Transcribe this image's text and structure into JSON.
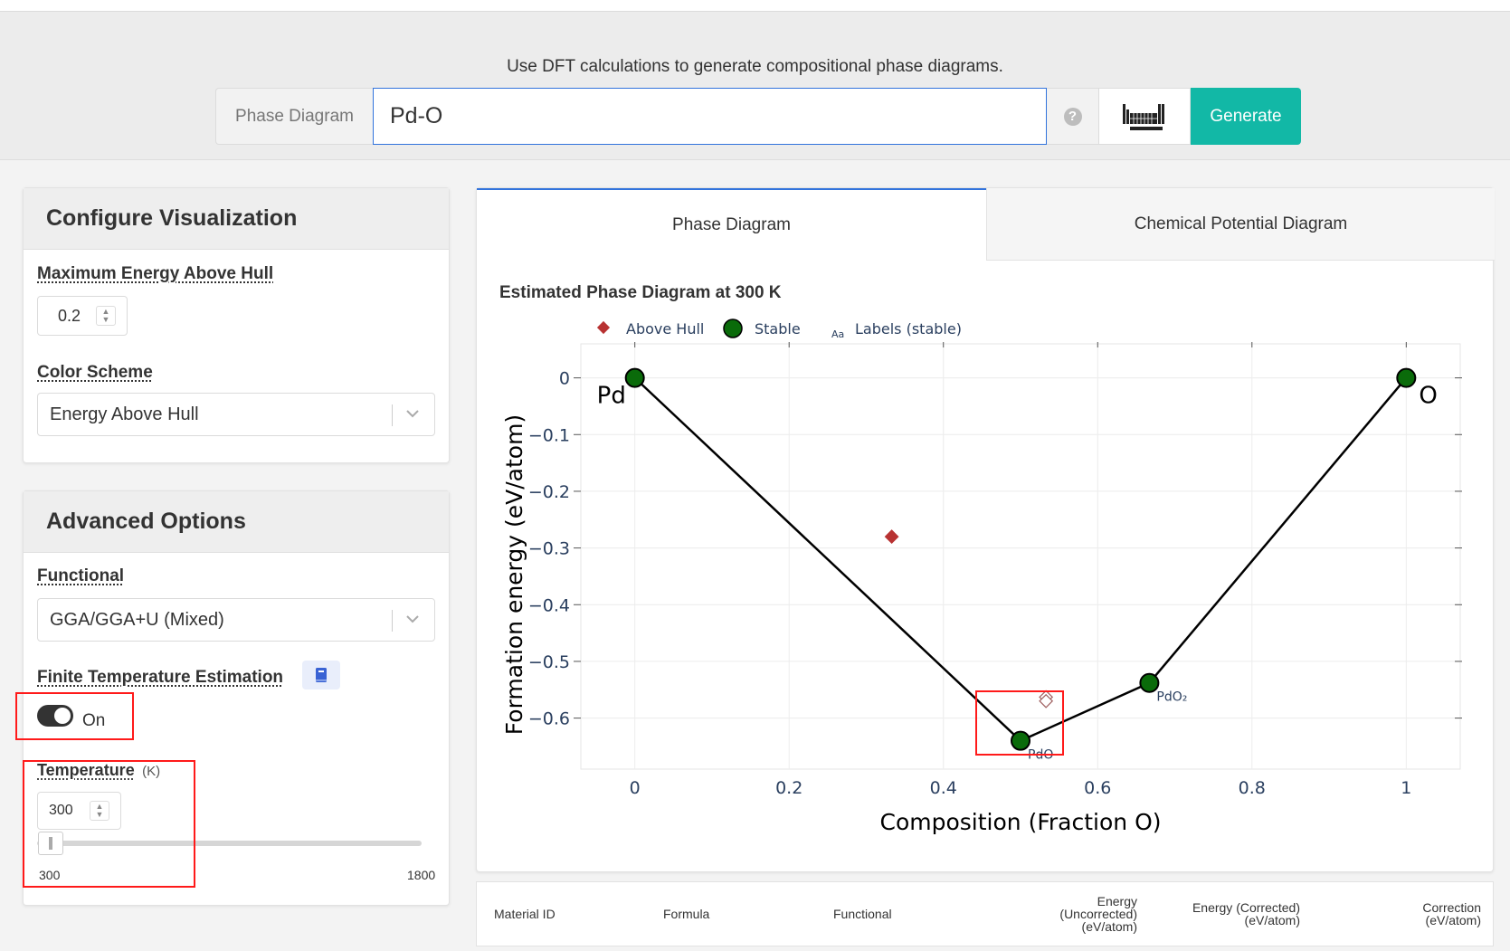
{
  "header": {
    "tagline": "Use DFT calculations to generate compositional phase diagrams.",
    "search_prefix": "Phase Diagram",
    "search_value": "Pd-O",
    "help_icon": "question-circle-icon",
    "periodic_table_icon": "periodic-table-icon",
    "generate_label": "Generate"
  },
  "configure": {
    "title": "Configure Visualization",
    "max_energy_label": "Maximum Energy Above Hull",
    "max_energy_value": "0.2",
    "color_scheme_label": "Color Scheme",
    "color_scheme_value": "Energy Above Hull"
  },
  "advanced": {
    "title": "Advanced Options",
    "functional_label": "Functional",
    "functional_value": "GGA/GGA+U (Mixed)",
    "finite_temp_label": "Finite Temperature Estimation",
    "finite_temp_icon": "book-icon",
    "toggle_state": "On",
    "temperature_label": "Temperature",
    "temperature_unit": "(K)",
    "temperature_value": "300",
    "slider_min": "300",
    "slider_max": "1800",
    "slider_value": 300
  },
  "tabs": {
    "phase_diagram": "Phase Diagram",
    "chem_potential": "Chemical Potential Diagram"
  },
  "chart_data": {
    "type": "scatter",
    "title": "Estimated Phase Diagram at 300 K",
    "xlabel": "Composition (Fraction O)",
    "ylabel": "Formation energy (eV/atom)",
    "xlim": [
      -0.07,
      1.07
    ],
    "ylim": [
      -0.69,
      0.06
    ],
    "xticks": [
      0,
      0.2,
      0.4,
      0.6,
      0.8,
      1
    ],
    "xtick_labels": [
      "0",
      "0.2",
      "0.4",
      "0.6",
      "0.8",
      "1"
    ],
    "yticks": [
      0,
      -0.1,
      -0.2,
      -0.3,
      -0.4,
      -0.5,
      -0.6
    ],
    "ytick_labels": [
      "0",
      "−0.1",
      "−0.2",
      "−0.3",
      "−0.4",
      "−0.5",
      "−0.6"
    ],
    "legend": [
      "Above Hull",
      "Stable",
      "Labels (stable)"
    ],
    "legend_glyph": "Aa",
    "hull_line": [
      [
        0,
        0
      ],
      [
        0.5,
        -0.64
      ],
      [
        0.667,
        -0.538
      ],
      [
        1,
        0
      ]
    ],
    "stable": [
      {
        "x": 0,
        "y": 0,
        "label": "Pd"
      },
      {
        "x": 0.5,
        "y": -0.64,
        "label": "PdO"
      },
      {
        "x": 0.667,
        "y": -0.538,
        "label": "PdO₂"
      },
      {
        "x": 1,
        "y": 0,
        "label": "O"
      }
    ],
    "above_hull": [
      {
        "x": 0.333,
        "y": -0.28
      },
      {
        "x": 0.533,
        "y": -0.563
      },
      {
        "x": 0.533,
        "y": -0.57
      }
    ],
    "colors": {
      "stable": "#0a6b0a",
      "above_hull": "#b83232",
      "line": "#000000"
    }
  },
  "table": {
    "headers": [
      "Material ID",
      "Formula",
      "Functional",
      "Energy (Uncorrected) (eV/atom)",
      "Energy (Corrected) (eV/atom)",
      "Correction (eV/atom)"
    ]
  }
}
